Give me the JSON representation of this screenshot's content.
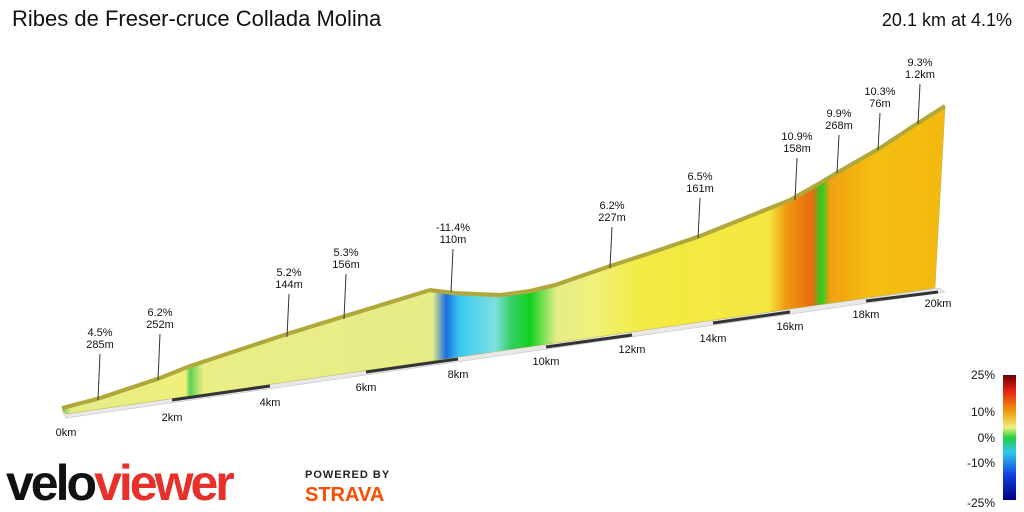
{
  "header": {
    "title": "Ribes de Freser-cruce Collada Molina",
    "summary": "20.1 km at 4.1%"
  },
  "annotations": [
    {
      "grade": "4.5%",
      "length": "285m"
    },
    {
      "grade": "6.2%",
      "length": "252m"
    },
    {
      "grade": "5.2%",
      "length": "144m"
    },
    {
      "grade": "5.3%",
      "length": "156m"
    },
    {
      "grade": "-11.4%",
      "length": "110m"
    },
    {
      "grade": "6.2%",
      "length": "227m"
    },
    {
      "grade": "6.5%",
      "length": "161m"
    },
    {
      "grade": "10.9%",
      "length": "158m"
    },
    {
      "grade": "9.9%",
      "length": "268m"
    },
    {
      "grade": "10.3%",
      "length": "76m"
    },
    {
      "grade": "9.3%",
      "length": "1.2km"
    }
  ],
  "distance_labels": [
    "0km",
    "2km",
    "4km",
    "6km",
    "8km",
    "10km",
    "12km",
    "14km",
    "16km",
    "18km",
    "20km"
  ],
  "legend": [
    "25%",
    "10%",
    "0%",
    "-10%",
    "-25%"
  ],
  "logo": {
    "velo": "velo",
    "viewer": "viewer",
    "powered": "POWERED BY",
    "strava": "STRAVA"
  }
}
